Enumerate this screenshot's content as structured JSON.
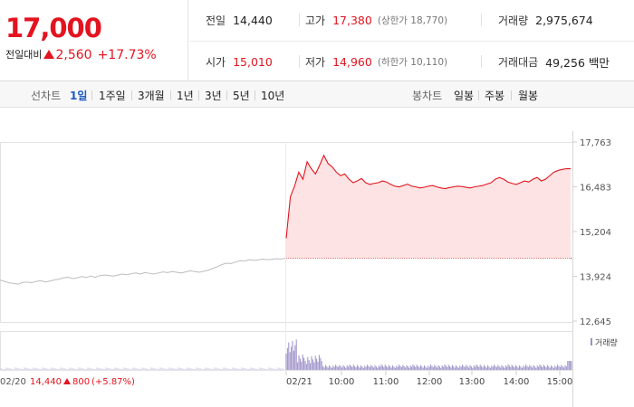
{
  "quote": {
    "price": "17,000",
    "change_label": "전일대비",
    "change": "2,560",
    "change_pct": "+17.73%"
  },
  "stats": {
    "prev_close_label": "전일",
    "prev_close": "14,440",
    "high_label": "고가",
    "high": "17,380",
    "upper_limit": "(상한가 18,770)",
    "volume_label": "거래량",
    "volume": "2,975,674",
    "open_label": "시가",
    "open": "15,010",
    "low_label": "저가",
    "low": "14,960",
    "lower_limit": "(하한가 10,110)",
    "amount_label": "거래대금",
    "amount": "49,256 백만"
  },
  "tabs": {
    "line_label": "선차트",
    "line": [
      "1일",
      "1주일",
      "3개월",
      "1년",
      "3년",
      "5년",
      "10년"
    ],
    "active": "1일",
    "candle_label": "봉차트",
    "candle": [
      "일봉",
      "주봉",
      "월봉"
    ]
  },
  "chart_data": {
    "type": "line",
    "y_ticks": [
      "17,763",
      "16,483",
      "15,204",
      "13,924",
      "12,645"
    ],
    "ylim": [
      12645,
      17763
    ],
    "x_ticks": [
      "02/21",
      "10:00",
      "11:00",
      "12:00",
      "13:00",
      "14:00",
      "15:00"
    ],
    "prev_day_label": "02/20",
    "prev_day_close": "14,440",
    "prev_day_change": "800",
    "prev_day_pct": "(+5.87%)",
    "volume_legend": "거래량",
    "colors": {
      "up": "#e3141f",
      "prev": "#bdbdbd",
      "fill": "#fde3e3",
      "volume": "#9b8fc7"
    },
    "series": [
      {
        "day": "02/20",
        "values": [
          13820,
          13780,
          13740,
          13720,
          13700,
          13750,
          13760,
          13740,
          13780,
          13800,
          13760,
          13790,
          13820,
          13840,
          13880,
          13900,
          13860,
          13880,
          13920,
          13890,
          13930,
          13900,
          13940,
          13960,
          13950,
          13930,
          13960,
          13990,
          13970,
          14000,
          14020,
          13990,
          14030,
          14010,
          13990,
          14020,
          14050,
          14030,
          14060,
          14040,
          14020,
          14050,
          14080,
          14060,
          14040,
          14070,
          14100,
          14150,
          14200,
          14260,
          14300,
          14290,
          14330,
          14370,
          14360,
          14400,
          14380,
          14390,
          14420,
          14400,
          14410,
          14430,
          14420,
          14440
        ]
      },
      {
        "day": "02/21",
        "values": [
          15010,
          16200,
          16500,
          16900,
          16700,
          17200,
          17000,
          16850,
          17100,
          17380,
          17150,
          17050,
          16900,
          16800,
          16850,
          16700,
          16600,
          16650,
          16720,
          16600,
          16550,
          16580,
          16600,
          16650,
          16620,
          16550,
          16500,
          16480,
          16520,
          16560,
          16500,
          16480,
          16450,
          16470,
          16500,
          16520,
          16480,
          16450,
          16430,
          16460,
          16480,
          16500,
          16490,
          16470,
          16450,
          16480,
          16500,
          16520,
          16560,
          16600,
          16700,
          16750,
          16700,
          16620,
          16580,
          16550,
          16600,
          16650,
          16620,
          16700,
          16750,
          16650,
          16700,
          16800,
          16900,
          16950,
          16980,
          17000,
          17000
        ]
      }
    ]
  }
}
